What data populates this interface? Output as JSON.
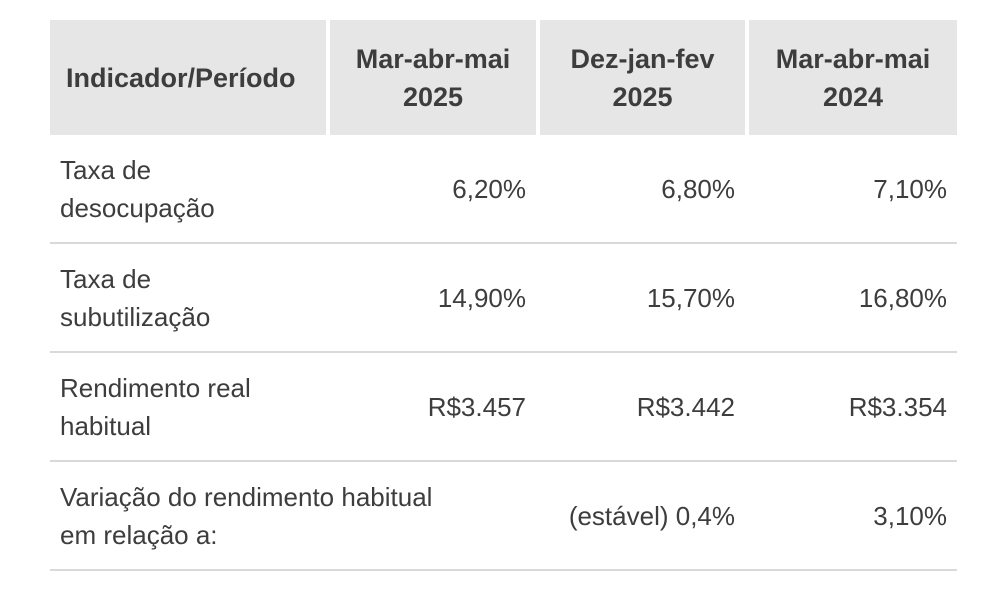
{
  "table": {
    "headers": [
      {
        "line1": "Indicador/Período",
        "line2": ""
      },
      {
        "line1": "Mar-abr-mai",
        "line2": "2025"
      },
      {
        "line1": "Dez-jan-fev",
        "line2": "2025"
      },
      {
        "line1": "Mar-abr-mai",
        "line2": "2024"
      }
    ],
    "rows": [
      {
        "label_line1": "Taxa de",
        "label_line2": "desocupação",
        "values": [
          "6,20%",
          "6,80%",
          "7,10%"
        ]
      },
      {
        "label_line1": "Taxa de",
        "label_line2": "subutilização",
        "values": [
          "14,90%",
          "15,70%",
          "16,80%"
        ]
      },
      {
        "label_line1": "Rendimento real",
        "label_line2": "habitual",
        "values": [
          "R$3.457",
          "R$3.442",
          "R$3.354"
        ]
      }
    ],
    "last_row": {
      "label_line1": "Variação do rendimento habitual",
      "label_line2": "em relação a:",
      "values": [
        "(estável) 0,4%",
        "3,10%"
      ]
    }
  }
}
